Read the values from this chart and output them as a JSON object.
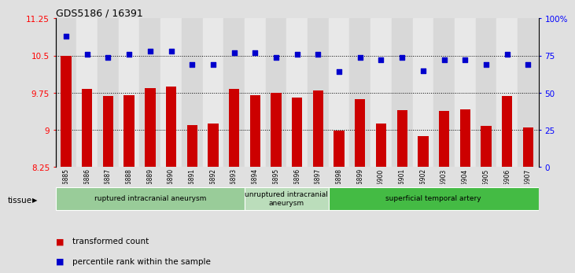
{
  "title": "GDS5186 / 16391",
  "samples": [
    "GSM1306885",
    "GSM1306886",
    "GSM1306887",
    "GSM1306888",
    "GSM1306889",
    "GSM1306890",
    "GSM1306891",
    "GSM1306892",
    "GSM1306893",
    "GSM1306894",
    "GSM1306895",
    "GSM1306896",
    "GSM1306897",
    "GSM1306898",
    "GSM1306899",
    "GSM1306900",
    "GSM1306901",
    "GSM1306902",
    "GSM1306903",
    "GSM1306904",
    "GSM1306905",
    "GSM1306906",
    "GSM1306907"
  ],
  "bar_values": [
    10.5,
    9.82,
    9.68,
    9.7,
    9.85,
    9.88,
    9.1,
    9.12,
    9.83,
    9.7,
    9.75,
    9.65,
    9.8,
    8.98,
    9.62,
    9.12,
    9.4,
    8.88,
    9.38,
    9.42,
    9.08,
    9.68,
    9.05
  ],
  "percentile_values": [
    88,
    76,
    74,
    76,
    78,
    78,
    69,
    69,
    77,
    77,
    74,
    76,
    76,
    64,
    74,
    72,
    74,
    65,
    72,
    72,
    69,
    76,
    69
  ],
  "ylim_left": [
    8.25,
    11.25
  ],
  "ylim_right": [
    0,
    100
  ],
  "yticks_left": [
    8.25,
    9.0,
    9.75,
    10.5,
    11.25
  ],
  "ytick_labels_left": [
    "8.25",
    "9",
    "9.75",
    "10.5",
    "11.25"
  ],
  "yticks_right": [
    0,
    25,
    50,
    75,
    100
  ],
  "ytick_labels_right": [
    "0",
    "25",
    "50",
    "75",
    "100%"
  ],
  "bar_color": "#CC0000",
  "scatter_color": "#0000CC",
  "bg_color": "#E0E0E0",
  "plot_bg": "#FFFFFF",
  "col_even": "#D8D8D8",
  "col_odd": "#E8E8E8",
  "tissue_groups": [
    {
      "label": "ruptured intracranial aneurysm",
      "start": 0,
      "end": 9,
      "color": "#99CC99"
    },
    {
      "label": "unruptured intracranial\naneurysm",
      "start": 9,
      "end": 13,
      "color": "#BBDDBB"
    },
    {
      "label": "superficial temporal artery",
      "start": 13,
      "end": 23,
      "color": "#44BB44"
    }
  ],
  "tissue_label": "tissue",
  "legend_items": [
    {
      "label": "transformed count",
      "color": "#CC0000"
    },
    {
      "label": "percentile rank within the sample",
      "color": "#0000CC"
    }
  ]
}
